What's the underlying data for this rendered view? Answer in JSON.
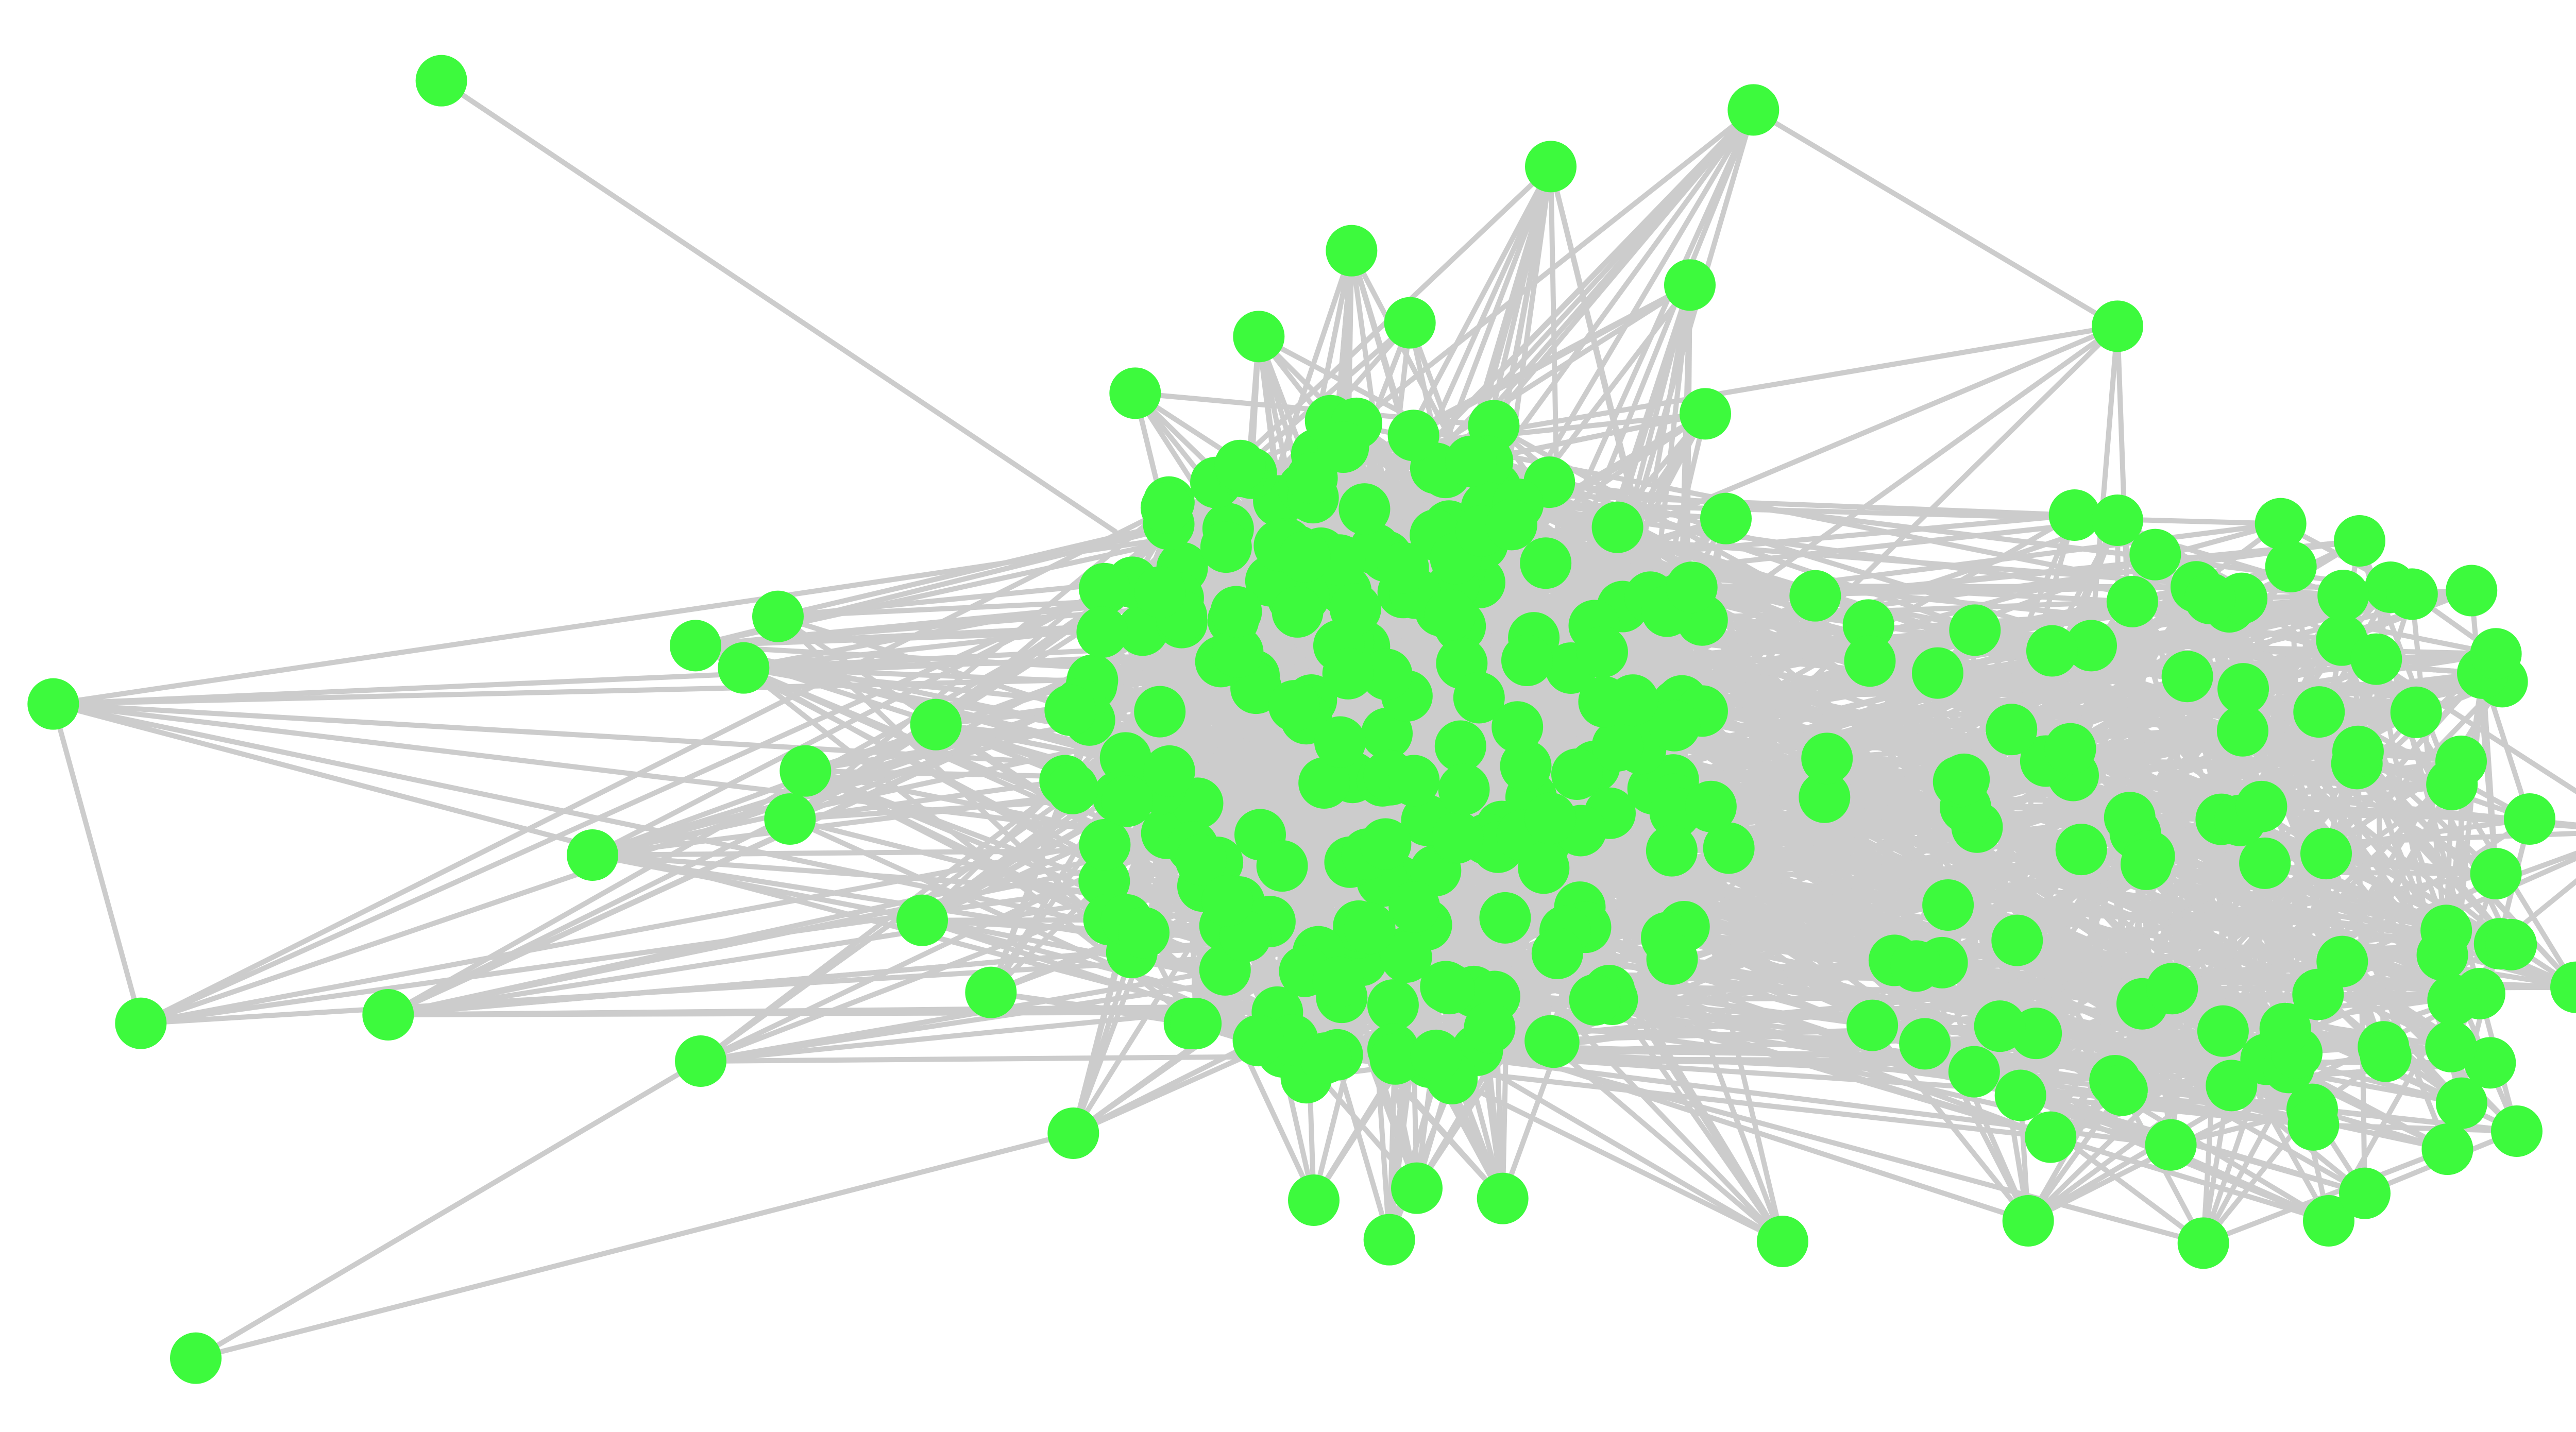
{
  "diagram": {
    "type": "network-graph",
    "labels_shown": false,
    "colors": {
      "background": "#ffffff",
      "node_fill": "#3dfa3d",
      "edge_stroke": "#cccccc"
    }
  }
}
